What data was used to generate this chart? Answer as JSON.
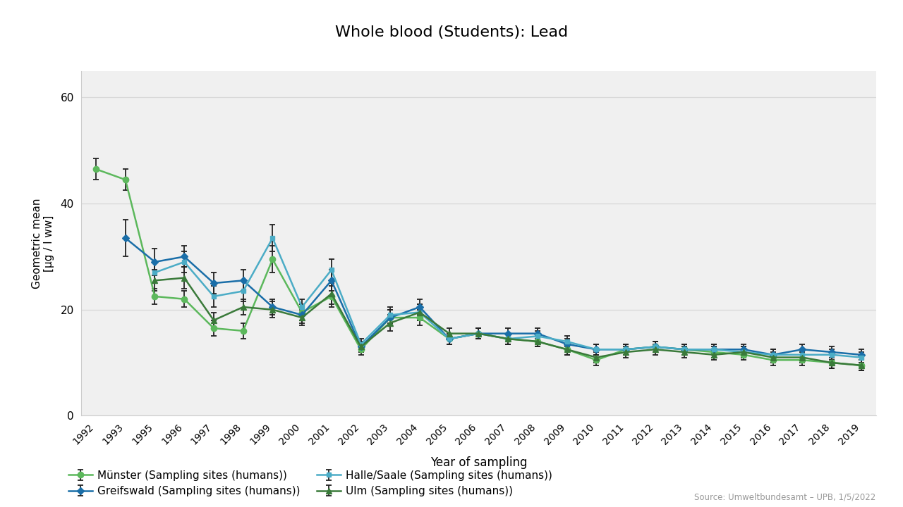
{
  "title": "Whole blood (Students): Lead",
  "xlabel": "Year of sampling",
  "ylabel": "Geometric mean\n[µg / l ww]",
  "source": "Source: Umweltbundesamt – UPB, 1/5/2022",
  "ylim": [
    0,
    65
  ],
  "yticks": [
    0,
    20,
    40,
    60
  ],
  "series": {
    "Münster": {
      "color": "#5cb85c",
      "marker": "o",
      "label": "Münster (Sampling sites (humans))",
      "years": [
        1992,
        1993,
        1995,
        1996,
        1997,
        1998,
        1999,
        2000,
        2001,
        2002,
        2003,
        2004,
        2005,
        2006,
        2007,
        2008,
        2009,
        2010,
        2011,
        2012,
        2013,
        2014,
        2015,
        2016,
        2017,
        2018,
        2019
      ],
      "values": [
        46.5,
        44.5,
        22.5,
        22.0,
        16.5,
        16.0,
        29.5,
        19.5,
        22.5,
        12.5,
        18.5,
        18.5,
        14.5,
        15.5,
        14.5,
        14.0,
        12.5,
        10.5,
        12.5,
        13.0,
        12.5,
        12.0,
        11.5,
        10.5,
        10.5,
        10.0,
        9.5
      ],
      "yerr_lo": [
        2.0,
        2.0,
        1.5,
        1.5,
        1.5,
        1.5,
        2.5,
        1.5,
        2.0,
        1.0,
        1.5,
        1.5,
        1.0,
        1.0,
        1.0,
        1.0,
        1.0,
        1.0,
        1.0,
        1.0,
        1.0,
        1.0,
        1.0,
        1.0,
        1.0,
        1.0,
        1.0
      ],
      "yerr_hi": [
        2.0,
        2.0,
        1.5,
        1.5,
        1.5,
        1.5,
        2.5,
        1.5,
        2.0,
        1.0,
        1.5,
        1.5,
        1.0,
        1.0,
        1.0,
        1.0,
        1.0,
        1.0,
        1.0,
        1.0,
        1.0,
        1.0,
        1.0,
        1.0,
        1.0,
        1.0,
        1.0
      ]
    },
    "Greifswald": {
      "color": "#1a6ea8",
      "marker": "D",
      "label": "Greifswald (Sampling sites (humans))",
      "years": [
        1993,
        1995,
        1996,
        1997,
        1998,
        1999,
        2000,
        2001,
        2002,
        2003,
        2004,
        2005,
        2006,
        2007,
        2008,
        2009,
        2010,
        2011,
        2012,
        2013,
        2014,
        2015,
        2016,
        2017,
        2018,
        2019
      ],
      "values": [
        33.5,
        29.0,
        30.0,
        25.0,
        25.5,
        20.5,
        19.0,
        25.5,
        13.0,
        18.5,
        20.5,
        14.5,
        15.5,
        15.5,
        15.5,
        13.5,
        12.5,
        12.5,
        13.0,
        12.5,
        12.5,
        12.5,
        11.5,
        12.5,
        12.0,
        11.5
      ],
      "yerr_lo": [
        3.5,
        2.5,
        2.0,
        2.0,
        2.0,
        1.5,
        1.5,
        2.0,
        1.0,
        1.5,
        1.5,
        1.0,
        1.0,
        1.0,
        1.0,
        1.0,
        1.0,
        1.0,
        1.0,
        1.0,
        1.0,
        1.0,
        1.0,
        1.0,
        1.0,
        1.0
      ],
      "yerr_hi": [
        3.5,
        2.5,
        2.0,
        2.0,
        2.0,
        1.5,
        1.5,
        2.0,
        1.0,
        1.5,
        1.5,
        1.0,
        1.0,
        1.0,
        1.0,
        1.0,
        1.0,
        1.0,
        1.0,
        1.0,
        1.0,
        1.0,
        1.0,
        1.0,
        1.0,
        1.0
      ]
    },
    "Halle": {
      "color": "#4bacc6",
      "marker": "s",
      "label": "Halle/Saale (Sampling sites (humans))",
      "years": [
        1995,
        1996,
        1997,
        1998,
        1999,
        2000,
        2001,
        2002,
        2003,
        2004,
        2005,
        2006,
        2007,
        2008,
        2009,
        2010,
        2011,
        2012,
        2013,
        2014,
        2015,
        2016,
        2017,
        2018,
        2019
      ],
      "values": [
        27.0,
        29.0,
        22.5,
        23.5,
        33.5,
        20.5,
        27.5,
        13.5,
        19.0,
        19.5,
        14.5,
        15.5,
        14.5,
        15.0,
        14.0,
        12.5,
        12.5,
        13.0,
        12.5,
        12.5,
        12.0,
        11.5,
        11.5,
        11.5,
        11.0
      ],
      "yerr_lo": [
        2.0,
        2.0,
        2.0,
        2.0,
        2.5,
        1.5,
        2.0,
        1.0,
        1.5,
        1.5,
        1.0,
        1.0,
        1.0,
        1.0,
        1.0,
        1.0,
        1.0,
        1.0,
        1.0,
        1.0,
        1.0,
        1.0,
        1.0,
        1.0,
        1.0
      ],
      "yerr_hi": [
        2.0,
        2.0,
        2.0,
        2.0,
        2.5,
        1.5,
        2.0,
        1.0,
        1.5,
        1.5,
        1.0,
        1.0,
        1.0,
        1.0,
        1.0,
        1.0,
        1.0,
        1.0,
        1.0,
        1.0,
        1.0,
        1.0,
        1.0,
        1.0,
        1.0
      ]
    },
    "Ulm": {
      "color": "#3a7a3a",
      "marker": "^",
      "label": "Ulm (Sampling sites (humans))",
      "years": [
        1995,
        1996,
        1997,
        1998,
        1999,
        2000,
        2001,
        2002,
        2003,
        2004,
        2005,
        2006,
        2007,
        2008,
        2009,
        2010,
        2011,
        2012,
        2013,
        2014,
        2015,
        2016,
        2017,
        2018,
        2019
      ],
      "values": [
        25.5,
        26.0,
        18.0,
        20.5,
        20.0,
        18.5,
        23.0,
        13.0,
        17.5,
        19.5,
        15.5,
        15.5,
        14.5,
        14.0,
        12.5,
        11.0,
        12.0,
        12.5,
        12.0,
        11.5,
        12.0,
        11.0,
        11.0,
        10.0,
        9.5
      ],
      "yerr_lo": [
        2.0,
        2.0,
        1.5,
        1.5,
        1.5,
        1.5,
        2.0,
        1.0,
        1.5,
        1.5,
        1.0,
        1.0,
        1.0,
        1.0,
        1.0,
        1.0,
        1.0,
        1.0,
        1.0,
        1.0,
        1.0,
        1.0,
        1.0,
        1.0,
        1.0
      ],
      "yerr_hi": [
        2.0,
        2.0,
        1.5,
        1.5,
        1.5,
        1.5,
        2.0,
        1.0,
        1.5,
        1.5,
        1.0,
        1.0,
        1.0,
        1.0,
        1.0,
        1.0,
        1.0,
        1.0,
        1.0,
        1.0,
        1.0,
        1.0,
        1.0,
        1.0,
        1.0
      ]
    }
  },
  "all_years": [
    1992,
    1993,
    1995,
    1996,
    1997,
    1998,
    1999,
    2000,
    2001,
    2002,
    2003,
    2004,
    2005,
    2006,
    2007,
    2008,
    2009,
    2010,
    2011,
    2012,
    2013,
    2014,
    2015,
    2016,
    2017,
    2018,
    2019
  ],
  "background_color": "#ffffff",
  "plot_bg_color": "#f0f0f0",
  "grid_color": "#d8d8d8",
  "series_order": [
    "Münster",
    "Greifswald",
    "Halle",
    "Ulm"
  ],
  "legend_order": [
    "Münster",
    "Greifswald",
    "Halle",
    "Ulm"
  ]
}
